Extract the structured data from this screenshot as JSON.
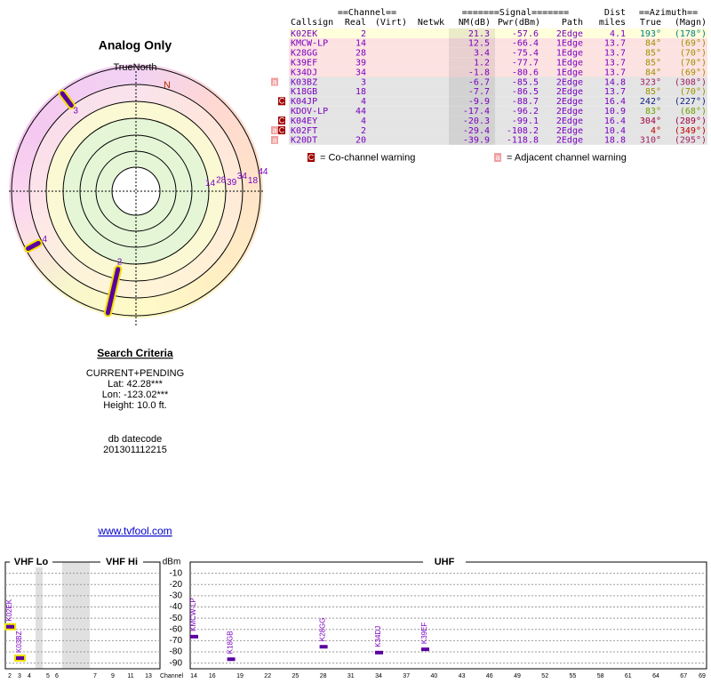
{
  "polar": {
    "title": "Analog Only",
    "north": "TrueNorth",
    "n_mark": "N"
  },
  "table": {
    "group_headers": [
      "==Channel==",
      "=======Signal=======",
      "Dist",
      "==Azimuth=="
    ],
    "headers": [
      "Callsign",
      "Real",
      "(Virt)",
      "Netwk",
      "NM(dB)",
      "Pwr(dBm)",
      "Path",
      "miles",
      "True",
      "(Magn)"
    ],
    "rows": [
      {
        "callsign": "K02EK",
        "real": 2,
        "nm": 21.3,
        "pwr": -57.6,
        "path": "2Edge",
        "dist": 4.1,
        "true_az": {
          "value": 193,
          "label": "193°"
        },
        "magn": "(178°)",
        "az_color": "#008080",
        "bg": "#ffffdc",
        "warnings": []
      },
      {
        "callsign": "KMCW-LP",
        "real": 14,
        "nm": 12.5,
        "pwr": -66.4,
        "path": "1Edge",
        "dist": 13.7,
        "true_az": {
          "value": 84,
          "label": "84°"
        },
        "magn": "(69°)",
        "az_color": "#a09000",
        "bg": "#fde2e2",
        "warnings": []
      },
      {
        "callsign": "K28GG",
        "real": 28,
        "nm": 3.4,
        "pwr": -75.4,
        "path": "1Edge",
        "dist": 13.7,
        "true_az": {
          "value": 85,
          "label": "85°"
        },
        "magn": "(70°)",
        "az_color": "#a09000",
        "bg": "#fde2e2",
        "warnings": []
      },
      {
        "callsign": "K39EF",
        "real": 39,
        "nm": 1.2,
        "pwr": -77.7,
        "path": "1Edge",
        "dist": 13.7,
        "true_az": {
          "value": 85,
          "label": "85°"
        },
        "magn": "(70°)",
        "az_color": "#a09000",
        "bg": "#fde2e2",
        "warnings": []
      },
      {
        "callsign": "K34DJ",
        "real": 34,
        "nm": -1.8,
        "pwr": -80.6,
        "path": "1Edge",
        "dist": 13.7,
        "true_az": {
          "value": 84,
          "label": "84°"
        },
        "magn": "(69°)",
        "az_color": "#a09000",
        "bg": "#fde2e2",
        "warnings": []
      },
      {
        "callsign": "K03BZ",
        "real": 3,
        "nm": -6.7,
        "pwr": -85.5,
        "path": "2Edge",
        "dist": 14.8,
        "true_az": {
          "value": 323,
          "label": "323°"
        },
        "magn": "(308°)",
        "az_color": "#a02060",
        "bg": "#e4e4e4",
        "warnings": [
          "a"
        ]
      },
      {
        "callsign": "K18GB",
        "real": 18,
        "nm": -7.7,
        "pwr": -86.5,
        "path": "2Edge",
        "dist": 13.7,
        "true_az": {
          "value": 85,
          "label": "85°"
        },
        "magn": "(70°)",
        "az_color": "#a09000",
        "bg": "#e4e4e4",
        "warnings": []
      },
      {
        "callsign": "K04JP",
        "real": 4,
        "nm": -9.9,
        "pwr": -88.7,
        "path": "2Edge",
        "dist": 16.4,
        "true_az": {
          "value": 242,
          "label": "242°"
        },
        "magn": "(227°)",
        "az_color": "#102080",
        "bg": "#e4e4e4",
        "warnings": [
          "C"
        ]
      },
      {
        "callsign": "KDOV-LP",
        "real": 44,
        "nm": -17.4,
        "pwr": -96.2,
        "path": "2Edge",
        "dist": 10.9,
        "true_az": {
          "value": 83,
          "label": "83°"
        },
        "magn": "(68°)",
        "az_color": "#70a000",
        "bg": "#e4e4e4",
        "warnings": []
      },
      {
        "callsign": "K04EY",
        "real": 4,
        "nm": -20.3,
        "pwr": -99.1,
        "path": "2Edge",
        "dist": 16.4,
        "true_az": {
          "value": 304,
          "label": "304°"
        },
        "magn": "(289°)",
        "az_color": "#a00040",
        "bg": "#e4e4e4",
        "warnings": [
          "C"
        ]
      },
      {
        "callsign": "K02FT",
        "real": 2,
        "nm": -29.4,
        "pwr": -108.2,
        "path": "2Edge",
        "dist": 10.4,
        "true_az": {
          "value": 4,
          "label": "4°"
        },
        "magn": "(349°)",
        "az_color": "#c00000",
        "bg": "#e4e4e4",
        "warnings": [
          "a",
          "C"
        ]
      },
      {
        "callsign": "K20DT",
        "real": 20,
        "nm": -39.9,
        "pwr": -118.8,
        "path": "2Edge",
        "dist": 18.8,
        "true_az": {
          "value": 310,
          "label": "310°"
        },
        "magn": "(295°)",
        "az_color": "#a02060",
        "bg": "#e4e4e4",
        "warnings": [
          "a"
        ]
      }
    ],
    "text_color": "#7a00c0"
  },
  "legend": [
    {
      "icon": "C",
      "text": "= Co-channel warning",
      "color": "#a00000"
    },
    {
      "icon": "a",
      "text": "= Adjacent channel warning",
      "color": "#f0a0a0"
    }
  ],
  "search": {
    "title": "Search Criteria",
    "lines": [
      "CURRENT+PENDING",
      "Lat: 42.28***",
      "Lon: -123.02***",
      "Height: 10.0 ft."
    ],
    "datecode_label": "db datecode",
    "datecode": "201301112215"
  },
  "link": "www.tvfool.com",
  "spectrum": {
    "bands": [
      "VHF Lo",
      "VHF Hi",
      "UHF"
    ],
    "y_label": "dBm",
    "ylim": [
      -95,
      0
    ],
    "yticks": [
      -10,
      -20,
      -30,
      -40,
      -50,
      -60,
      -70,
      -80,
      -90
    ],
    "vhf_ticks": [
      2,
      3,
      4,
      5,
      6,
      7,
      9,
      11,
      13
    ],
    "uhf_ticks": [
      14,
      16,
      19,
      22,
      25,
      28,
      31,
      34,
      37,
      40,
      43,
      46,
      49,
      52,
      55,
      58,
      61,
      64,
      67,
      69
    ],
    "x_label": "Channel",
    "bar_color": "#5a00a0",
    "analog_outline": "#f0e000"
  }
}
